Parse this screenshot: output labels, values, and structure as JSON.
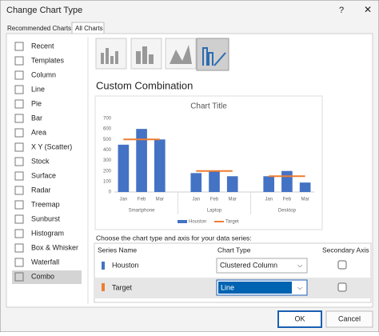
{
  "dialog": {
    "title": "Change Chart Type",
    "tabs": [
      "Recommended Charts",
      "All Charts"
    ],
    "chart_types": [
      "Recent",
      "Templates",
      "Column",
      "Line",
      "Pie",
      "Bar",
      "Area",
      "X Y (Scatter)",
      "Stock",
      "Surface",
      "Radar",
      "Treemap",
      "Sunburst",
      "Histogram",
      "Box & Whisker",
      "Waterfall",
      "Combo"
    ],
    "section_title": "Custom Combination",
    "series_prompt": "Choose the chart type and axis for your data series:",
    "table": {
      "headers": [
        "Series Name",
        "Chart Type",
        "Secondary Axis"
      ],
      "rows": [
        [
          "Houston",
          "Clustered Column"
        ],
        [
          "Target",
          "Line"
        ]
      ]
    },
    "buttons": [
      "OK",
      "Cancel"
    ]
  },
  "chart_data": {
    "type": "combo",
    "title": "Chart Title",
    "categories": [
      "Jan",
      "Feb",
      "Mar",
      null,
      "Jan",
      "Feb",
      "Mar",
      null,
      "Jan",
      "Feb",
      "Mar"
    ],
    "category_groups": [
      "Smartphone",
      "Laptop",
      "Desktop"
    ],
    "series": [
      {
        "name": "Houston",
        "type": "bar",
        "color": "#4472c4",
        "values": [
          450,
          600,
          500,
          null,
          180,
          200,
          150,
          null,
          150,
          200,
          90
        ]
      },
      {
        "name": "Target",
        "type": "line",
        "color": "#ed7d31",
        "values": [
          500,
          500,
          500,
          null,
          200,
          200,
          200,
          null,
          150,
          150,
          150
        ]
      }
    ],
    "ylim": [
      0,
      700
    ],
    "yticks": [
      0,
      100,
      200,
      300,
      400,
      500,
      600,
      700
    ],
    "grid": false,
    "legend": "bottom"
  }
}
